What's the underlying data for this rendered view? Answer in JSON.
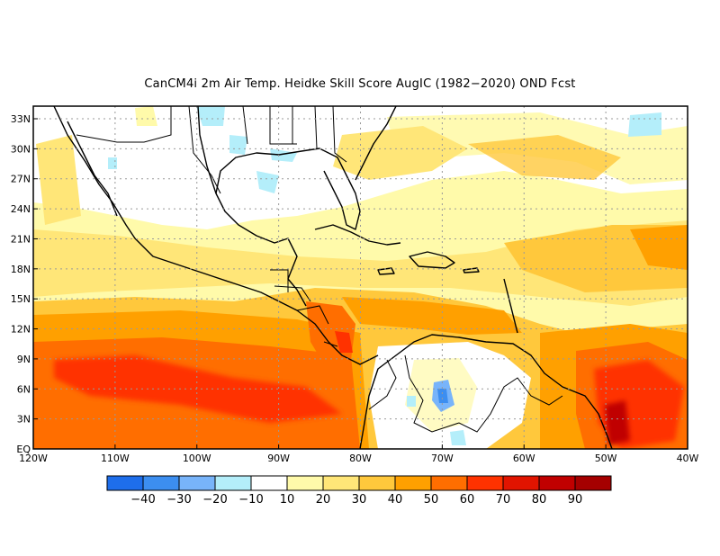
{
  "title": "CanCM4i  2m Air Temp. Heidke Skill Score AugIC (1982−2020) OND Fcst",
  "map": {
    "lon_labels": [
      "120W",
      "110W",
      "100W",
      "90W",
      "80W",
      "70W",
      "60W",
      "50W",
      "40W"
    ],
    "lat_labels": [
      "EQ",
      "3N",
      "6N",
      "9N",
      "12N",
      "15N",
      "18N",
      "21N",
      "24N",
      "27N",
      "30N",
      "33N"
    ]
  },
  "colorbar": {
    "labels": [
      "−40",
      "−30",
      "−20",
      "−10",
      "10",
      "20",
      "30",
      "40",
      "50",
      "60",
      "70",
      "80",
      "90"
    ],
    "colors": [
      "#1e6eeb",
      "#3c8ef0",
      "#78b4fa",
      "#b4eefa",
      "#ffffff",
      "#fffaaa",
      "#ffe678",
      "#ffc83c",
      "#ffa000",
      "#ff6e00",
      "#ff3200",
      "#e11400",
      "#c00000",
      "#a50000"
    ]
  }
}
